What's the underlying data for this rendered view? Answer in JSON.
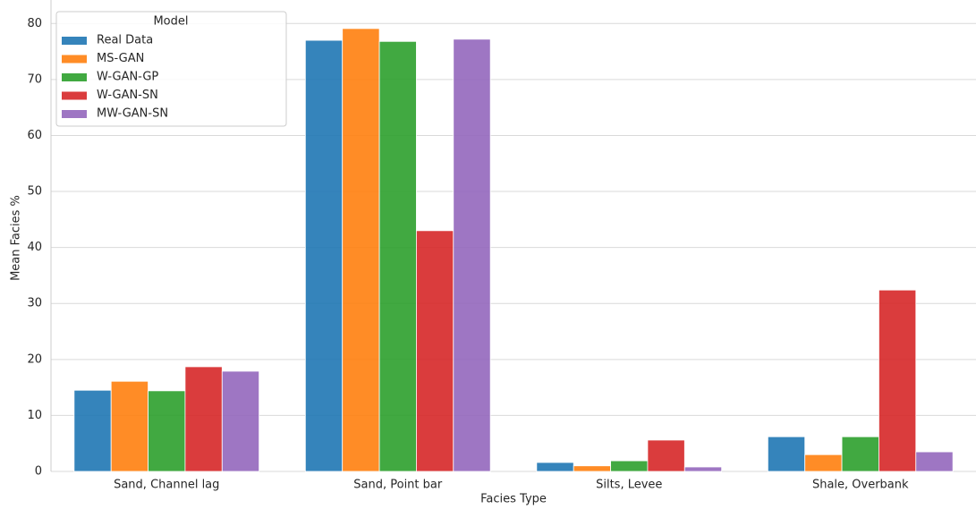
{
  "chart_data": {
    "type": "bar",
    "categories": [
      "Sand, Channel lag",
      "Sand, Point bar",
      "Silts, Levee",
      "Shale, Overbank"
    ],
    "series": [
      {
        "name": "Real Data",
        "color": "#1f77b4",
        "values": [
          14.5,
          77.0,
          1.6,
          6.2
        ]
      },
      {
        "name": "MS-GAN",
        "color": "#ff7f0e",
        "values": [
          16.1,
          79.1,
          1.0,
          3.0
        ]
      },
      {
        "name": "W-GAN-GP",
        "color": "#2ca02c",
        "values": [
          14.4,
          76.8,
          1.9,
          6.2
        ]
      },
      {
        "name": "W-GAN-SN",
        "color": "#d62728",
        "values": [
          18.7,
          43.0,
          5.6,
          32.4
        ]
      },
      {
        "name": "MW-GAN-SN",
        "color": "#9467bd",
        "values": [
          17.9,
          77.2,
          0.8,
          3.5
        ]
      }
    ],
    "xlabel": "Facies Type",
    "ylabel": "Mean Facies %",
    "legend_title": "Model",
    "legend": "upper left",
    "ylim": [
      0,
      82.6
    ],
    "yticks": [
      0,
      10,
      20,
      30,
      40,
      50,
      60,
      70,
      80
    ],
    "grid": true
  }
}
